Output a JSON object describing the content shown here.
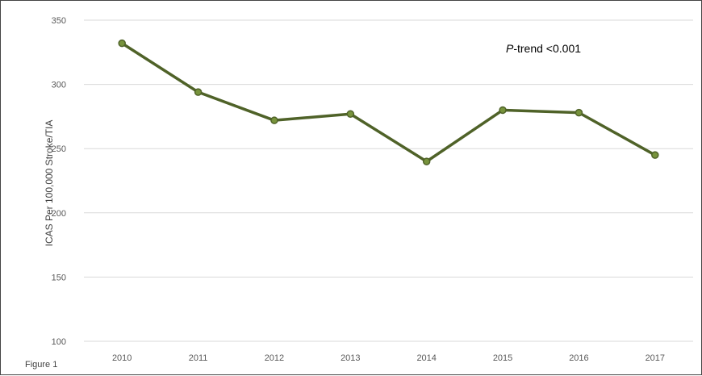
{
  "figure_label": "Figure 1",
  "chart_data": {
    "type": "line",
    "title": "",
    "xlabel": "",
    "ylabel": "ICAS Per 100,000 Stroke/TIA",
    "categories": [
      "2010",
      "2011",
      "2012",
      "2013",
      "2014",
      "2015",
      "2016",
      "2017"
    ],
    "series": [
      {
        "values": [
          332,
          294,
          272,
          277,
          240,
          280,
          278,
          245
        ]
      }
    ],
    "ylim": [
      100,
      350
    ],
    "yticks": [
      100,
      150,
      200,
      250,
      300,
      350
    ],
    "grid": true,
    "line_color": "#4f6228",
    "marker_fill": "#77933c",
    "annotation": {
      "prefix": "P",
      "text": "-trend <0.001"
    }
  }
}
